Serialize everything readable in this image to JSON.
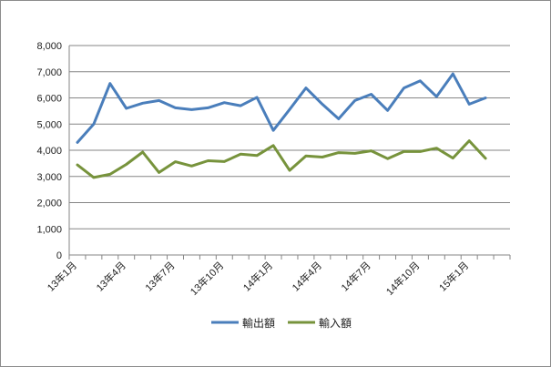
{
  "chart_data": {
    "type": "line",
    "x": [
      "13年1月",
      "13年2月",
      "13年3月",
      "13年4月",
      "13年5月",
      "13年6月",
      "13年7月",
      "13年8月",
      "13年9月",
      "13年10月",
      "13年11月",
      "13年12月",
      "14年1月",
      "14年2月",
      "14年3月",
      "14年4月",
      "14年5月",
      "14年6月",
      "14年7月",
      "14年8月",
      "14年9月",
      "14年10月",
      "14年11月",
      "14年12月",
      "15年1月",
      "15年2月",
      "15年3月"
    ],
    "x_tick_labels": [
      "13年1月",
      "13年4月",
      "13年7月",
      "13年10月",
      "14年1月",
      "14年4月",
      "14年7月",
      "14年10月",
      "15年1月"
    ],
    "series": [
      {
        "name": "輸出額",
        "color": "#4a7ebb",
        "values": [
          4300,
          5000,
          6550,
          5600,
          5800,
          5900,
          5620,
          5550,
          5620,
          5820,
          5700,
          6020,
          4760,
          5560,
          6380,
          5760,
          5200,
          5900,
          6140,
          5520,
          6380,
          6650,
          6050,
          6920,
          5760,
          6000,
          null
        ]
      },
      {
        "name": "輸入額",
        "color": "#77933c",
        "values": [
          3440,
          2960,
          3080,
          3460,
          3930,
          3150,
          3560,
          3400,
          3600,
          3570,
          3850,
          3800,
          4180,
          3230,
          3780,
          3740,
          3910,
          3880,
          3980,
          3680,
          3950,
          3950,
          4080,
          3700,
          4360,
          3690,
          null
        ]
      }
    ],
    "ylim": [
      0,
      8000
    ],
    "y_ticks": [
      "0",
      "1,000",
      "2,000",
      "3,000",
      "4,000",
      "5,000",
      "6,000",
      "7,000",
      "8,000"
    ],
    "grid": true,
    "legend_position": "bottom",
    "title": "",
    "xlabel": "",
    "ylabel": ""
  }
}
